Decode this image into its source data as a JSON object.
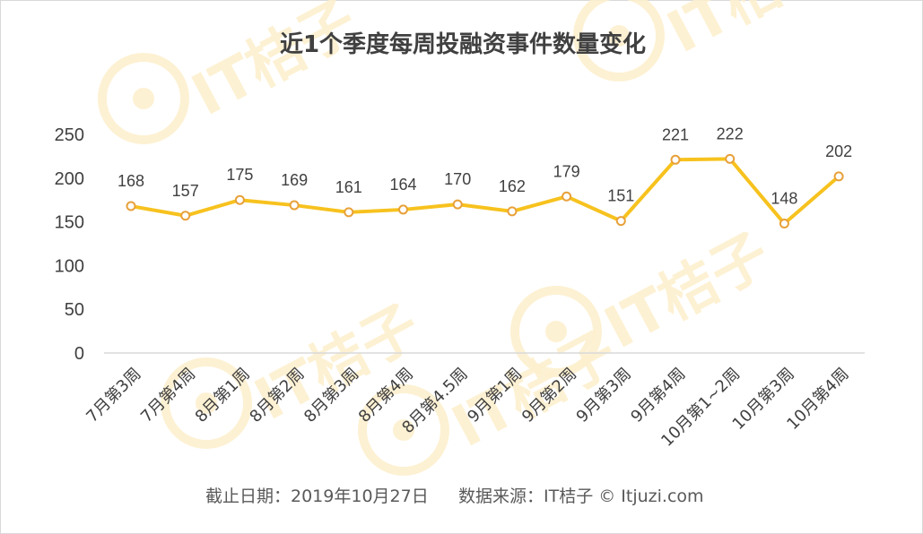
{
  "chart_data": {
    "type": "line",
    "title": "近1个季度每周投融资事件数量变化",
    "categories": [
      "7月第3周",
      "7月第4周",
      "8月第1周",
      "8月第2周",
      "8月第3周",
      "8月第4周",
      "8月第4.5周",
      "9月第1周",
      "9月第2周",
      "9月第3周",
      "9月第4周",
      "10月第1~2周",
      "10月第3周",
      "10月第4周"
    ],
    "values": [
      168,
      157,
      175,
      169,
      161,
      164,
      170,
      162,
      179,
      151,
      221,
      222,
      148,
      202
    ],
    "ylim": [
      0,
      250
    ],
    "yticks": [
      0,
      50,
      100,
      150,
      200,
      250
    ],
    "grid": false,
    "legend": "none",
    "line_color": "#f7c21e",
    "marker_stroke": "#e8a13a",
    "marker_fill": "#ffffff"
  },
  "footer": {
    "date_text": "截止日期：2019年10月27日",
    "source_text": "数据来源：IT桔子 © Itjuzi.com"
  },
  "watermark": {
    "text": "IT桔子",
    "color": "#fdf0cf"
  }
}
